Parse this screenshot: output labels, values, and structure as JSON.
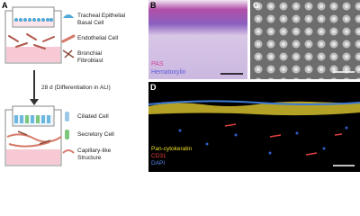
{
  "panel_a": {
    "label": "A",
    "legend_top": [
      "Tracheal Epithelial Basal Cell",
      "Endothelial Cell",
      "Bronchial Fibroblast"
    ],
    "arrow_text": "28 d (Differentiation in ALI)",
    "legend_bottom": [
      "Ciliated Cell",
      "Secretory Cell",
      "Capillary-like Structure"
    ]
  },
  "panel_b": {
    "label": "B",
    "stains": [
      "PAS",
      "Hematoxylin"
    ]
  },
  "panel_c": {
    "label": "C"
  },
  "panel_d": {
    "label": "D",
    "stains": [
      "Pan-cytokeratin",
      "CD31",
      "DAPI"
    ]
  }
}
